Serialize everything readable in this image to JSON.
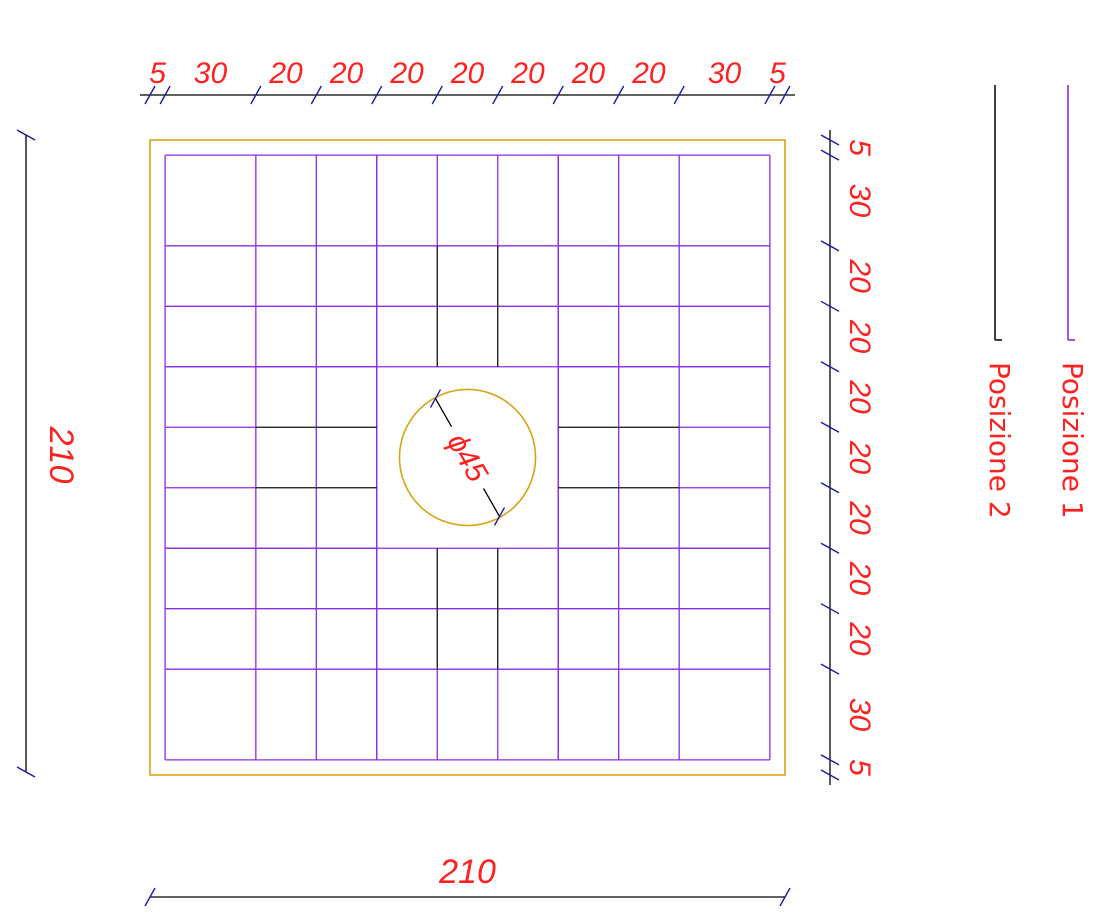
{
  "colors": {
    "concrete_outline": "#d9a316",
    "position_1": "#8a2be2",
    "position_2": "#111111",
    "dimension_line": "#1a1aa6",
    "dimension_text": "#ff2020",
    "overall_dim_line": "#000000"
  },
  "drawing": {
    "slab_width": 210,
    "slab_height": 210,
    "cover": 5,
    "hole_diameter": 45,
    "hole_label": "ϕ45"
  },
  "dimensions": {
    "top_segments": [
      "5",
      "30",
      "20",
      "20",
      "20",
      "20",
      "20",
      "20",
      "20",
      "30",
      "5"
    ],
    "right_segments": [
      "5",
      "30",
      "20",
      "20",
      "20",
      "20",
      "20",
      "20",
      "20",
      "30",
      "5"
    ],
    "overall_bottom": "210",
    "overall_left": "210"
  },
  "legend": {
    "position_1": "Posizione 1",
    "position_2": "Posizione 2"
  }
}
